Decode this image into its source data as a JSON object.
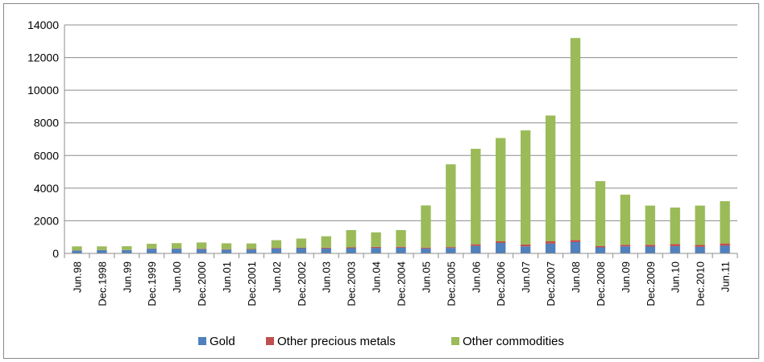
{
  "chart_data": {
    "type": "bar",
    "stacked": true,
    "title": "",
    "xlabel": "",
    "ylabel": "",
    "ylim": [
      0,
      14000
    ],
    "yticks": [
      0,
      2000,
      4000,
      6000,
      8000,
      10000,
      12000,
      14000
    ],
    "ytick_labels": [
      "0",
      "2000",
      "4000",
      "6000",
      "8000",
      "10000",
      "12000",
      "14000"
    ],
    "grid": "horizontal",
    "legend_position": "bottom",
    "categories": [
      "Jun.98",
      "Dec.1998",
      "Jun.99",
      "Dec.1999",
      "Jun.00",
      "Dec.2000",
      "Jun.01",
      "Dec.2001",
      "Jun.02",
      "Dec.2002",
      "Jun.03",
      "Dec.2003",
      "Jun.04",
      "Dec.2004",
      "Jun.05",
      "Dec.2005",
      "Jun.06",
      "Dec.2006",
      "Jun.07",
      "Dec.2007",
      "Jun.08",
      "Dec.2008",
      "Jun.09",
      "Dec.2009",
      "Jun.10",
      "Dec.2010",
      "Jun.11"
    ],
    "series": [
      {
        "name": "Gold",
        "color": "#4f81bd",
        "values": [
          180,
          200,
          200,
          280,
          280,
          260,
          230,
          240,
          300,
          320,
          300,
          320,
          340,
          350,
          300,
          330,
          460,
          640,
          430,
          600,
          690,
          370,
          430,
          420,
          440,
          400,
          470
        ]
      },
      {
        "name": "Other precious metals",
        "color": "#c0504d",
        "values": [
          10,
          10,
          10,
          20,
          20,
          30,
          30,
          30,
          40,
          40,
          50,
          50,
          60,
          60,
          60,
          60,
          100,
          100,
          120,
          140,
          130,
          90,
          100,
          110,
          130,
          120,
          140
        ]
      },
      {
        "name": "Other commodities",
        "color": "#9bbb59",
        "values": [
          240,
          220,
          230,
          290,
          330,
          380,
          360,
          340,
          470,
          550,
          700,
          1060,
          890,
          1020,
          2580,
          5070,
          5850,
          6330,
          6990,
          7710,
          12380,
          3970,
          3070,
          2400,
          2240,
          2410,
          2590
        ]
      }
    ]
  }
}
